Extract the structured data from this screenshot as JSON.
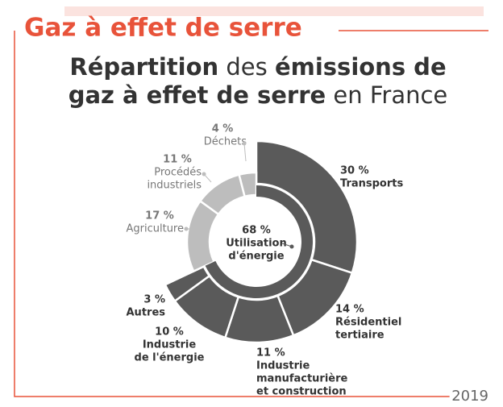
{
  "header": "Gaz à effet de serre",
  "chart_data": {
    "type": "sunburst",
    "title_lines": [
      [
        {
          "text": "Répartition",
          "bold": true
        },
        {
          "text": " des ",
          "bold": false
        },
        {
          "text": "émissions de",
          "bold": true
        }
      ],
      [
        {
          "text": "gaz à effet de serre",
          "bold": true
        },
        {
          "text": " en France",
          "bold": false
        }
      ]
    ],
    "center": {
      "value": 68,
      "value_label": "68 %",
      "name": [
        "Utilisation",
        "d'énergie"
      ],
      "color": "#5a5a5a"
    },
    "segments": [
      {
        "name": [
          "Transports"
        ],
        "value": 30,
        "value_label": "30 %",
        "ring": "outer",
        "color": "#5a5a5a"
      },
      {
        "name": [
          "Résidentiel",
          "tertiaire"
        ],
        "value": 14,
        "value_label": "14 %",
        "ring": "outer",
        "color": "#5a5a5a"
      },
      {
        "name": [
          "Industrie",
          "manufacturière",
          "et construction"
        ],
        "value": 11,
        "value_label": "11 %",
        "ring": "outer",
        "color": "#5a5a5a"
      },
      {
        "name": [
          "Industrie",
          "de l'énergie"
        ],
        "value": 10,
        "value_label": "10 %",
        "ring": "outer",
        "color": "#5a5a5a"
      },
      {
        "name": [
          "Autres"
        ],
        "value": 3,
        "value_label": "3 %",
        "ring": "outer",
        "color": "#5a5a5a"
      },
      {
        "name": [
          "Agriculture"
        ],
        "value": 17,
        "value_label": "17 %",
        "ring": "inner",
        "color": "#bdbdbd"
      },
      {
        "name": [
          "Procédés",
          "industriels"
        ],
        "value": 11,
        "value_label": "11 %",
        "ring": "inner",
        "color": "#bdbdbd"
      },
      {
        "name": [
          "Déchets"
        ],
        "value": 4,
        "value_label": "4 %",
        "ring": "inner",
        "color": "#bdbdbd"
      }
    ]
  },
  "footer": "2019"
}
